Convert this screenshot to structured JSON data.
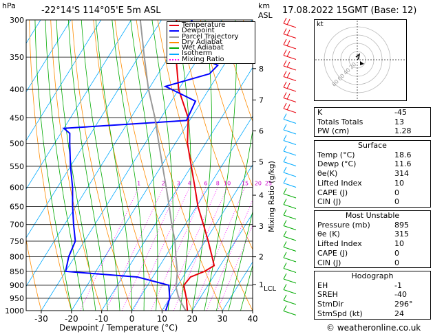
{
  "header": {
    "hpa_unit": "hPa",
    "location": "-22°14'S  114°05'E  5m  ASL",
    "km_unit": "km",
    "asl": "ASL",
    "datetime": "17.08.2022  15GMT  (Base: 12)"
  },
  "footer": {
    "x_title": "Dewpoint / Temperature (°C)",
    "copyright": "© weatheronline.co.uk"
  },
  "legend": [
    {
      "label": "Temperature",
      "color": "#e8000b"
    },
    {
      "label": "Dewpoint",
      "color": "#0000ff"
    },
    {
      "label": "Parcel Trajectory",
      "color": "#999999"
    },
    {
      "label": "Dry Adiabat",
      "color": "#ff8c00"
    },
    {
      "label": "Wet Adiabat",
      "color": "#00aa00"
    },
    {
      "label": "Isotherm",
      "color": "#00aaff"
    },
    {
      "label": "Mixing Ratio",
      "color": "#ff00ff"
    }
  ],
  "chart_data": {
    "type": "line",
    "title": "-22°14'S  114°05'E  5m  ASL",
    "xlabel": "Dewpoint / Temperature (°C)",
    "ylabel": "hPa",
    "xlim": [
      -35,
      40
    ],
    "ylim": [
      1000,
      300
    ],
    "y_log_scale": true,
    "skew": true,
    "x_ticks": [
      -30,
      -20,
      -10,
      0,
      10,
      20,
      30,
      40
    ],
    "pressure_levels": [
      300,
      350,
      400,
      450,
      500,
      550,
      600,
      650,
      700,
      750,
      800,
      850,
      900,
      950,
      1000
    ],
    "height_axis_label": "km ASL",
    "height_ticks": [
      {
        "km": "8",
        "p": 367
      },
      {
        "km": "7",
        "p": 418
      },
      {
        "km": "6",
        "p": 475
      },
      {
        "km": "5",
        "p": 540
      },
      {
        "km": "4",
        "p": 620
      },
      {
        "km": "3",
        "p": 705
      },
      {
        "km": "2",
        "p": 800
      },
      {
        "km": "1",
        "p": 898
      }
    ],
    "lcl_label": "LCL",
    "lcl_p": 910,
    "mixing_ratio_axis_label": "Mixing Ratio (g/kg)",
    "mixing_ratio_labels": [
      "1",
      "2",
      "3",
      "4",
      "6",
      "8",
      "10",
      "15",
      "20",
      "25"
    ],
    "mixing_ratio_values": [
      1,
      2,
      3,
      4,
      6,
      8,
      10,
      15,
      20,
      25
    ],
    "series": [
      {
        "name": "Temperature",
        "color": "#e8000b",
        "points": [
          [
            1008,
            18.6
          ],
          [
            1000,
            18.4
          ],
          [
            950,
            15.5
          ],
          [
            900,
            12.0
          ],
          [
            870,
            12.5
          ],
          [
            850,
            16.0
          ],
          [
            830,
            18.0
          ],
          [
            800,
            15.5
          ],
          [
            750,
            11.0
          ],
          [
            700,
            6.0
          ],
          [
            650,
            0.5
          ],
          [
            600,
            -4.5
          ],
          [
            550,
            -10.0
          ],
          [
            500,
            -16.0
          ],
          [
            450,
            -21.0
          ],
          [
            400,
            -30.0
          ],
          [
            350,
            -37.5
          ],
          [
            300,
            -45.0
          ]
        ]
      },
      {
        "name": "Dewpoint",
        "color": "#0000ff",
        "points": [
          [
            1008,
            11.6
          ],
          [
            1000,
            11.2
          ],
          [
            950,
            10.0
          ],
          [
            900,
            7.0
          ],
          [
            870,
            -5.0
          ],
          [
            850,
            -30.0
          ],
          [
            800,
            -32.0
          ],
          [
            750,
            -33.0
          ],
          [
            700,
            -37.0
          ],
          [
            650,
            -41.0
          ],
          [
            600,
            -45.0
          ],
          [
            550,
            -50.0
          ],
          [
            500,
            -55.0
          ],
          [
            480,
            -57.0
          ],
          [
            470,
            -60.0
          ],
          [
            455,
            -21.0
          ],
          [
            420,
            -22.0
          ],
          [
            395,
            -35.0
          ],
          [
            375,
            -23.0
          ],
          [
            362,
            -22.0
          ],
          [
            350,
            -30.0
          ],
          [
            330,
            -33.0
          ],
          [
            300,
            -40.0
          ]
        ]
      },
      {
        "name": "Parcel Trajectory",
        "color": "#999999",
        "points": [
          [
            1008,
            18.6
          ],
          [
            950,
            13.0
          ],
          [
            910,
            10.0
          ],
          [
            850,
            7.0
          ],
          [
            800,
            3.5
          ],
          [
            750,
            0.0
          ],
          [
            700,
            -4.5
          ],
          [
            650,
            -9.0
          ],
          [
            600,
            -14.0
          ],
          [
            550,
            -19.5
          ],
          [
            500,
            -25.5
          ],
          [
            450,
            -32.0
          ],
          [
            400,
            -40.0
          ],
          [
            350,
            -48.0
          ],
          [
            300,
            -57.0
          ]
        ]
      }
    ],
    "wind_barbs_count": 28
  },
  "hodograph": {
    "unit": "kt",
    "ring_labels": [
      "80",
      "60",
      "40",
      "20"
    ]
  },
  "indices": {
    "top": [
      {
        "label": "K",
        "value": "-45"
      },
      {
        "label": "Totals Totals",
        "value": "13"
      },
      {
        "label": "PW (cm)",
        "value": "1.28"
      }
    ],
    "surface": {
      "title": "Surface",
      "rows": [
        {
          "label": "Temp (°C)",
          "value": "18.6"
        },
        {
          "label": "Dewp (°C)",
          "value": "11.6"
        },
        {
          "label": "θe(K)",
          "value": "314"
        },
        {
          "label": "Lifted Index",
          "value": "10"
        },
        {
          "label": "CAPE (J)",
          "value": "0"
        },
        {
          "label": "CIN (J)",
          "value": "0"
        }
      ]
    },
    "unstable": {
      "title": "Most Unstable",
      "rows": [
        {
          "label": "Pressure (mb)",
          "value": "895"
        },
        {
          "label": "θe (K)",
          "value": "315"
        },
        {
          "label": "Lifted Index",
          "value": "10"
        },
        {
          "label": "CAPE (J)",
          "value": "0"
        },
        {
          "label": "CIN (J)",
          "value": "0"
        }
      ]
    },
    "hodo": {
      "title": "Hodograph",
      "rows": [
        {
          "label": "EH",
          "value": "-1"
        },
        {
          "label": "SREH",
          "value": "-40"
        },
        {
          "label": "StmDir",
          "value": "296°"
        },
        {
          "label": "StmSpd (kt)",
          "value": "24"
        }
      ]
    }
  }
}
